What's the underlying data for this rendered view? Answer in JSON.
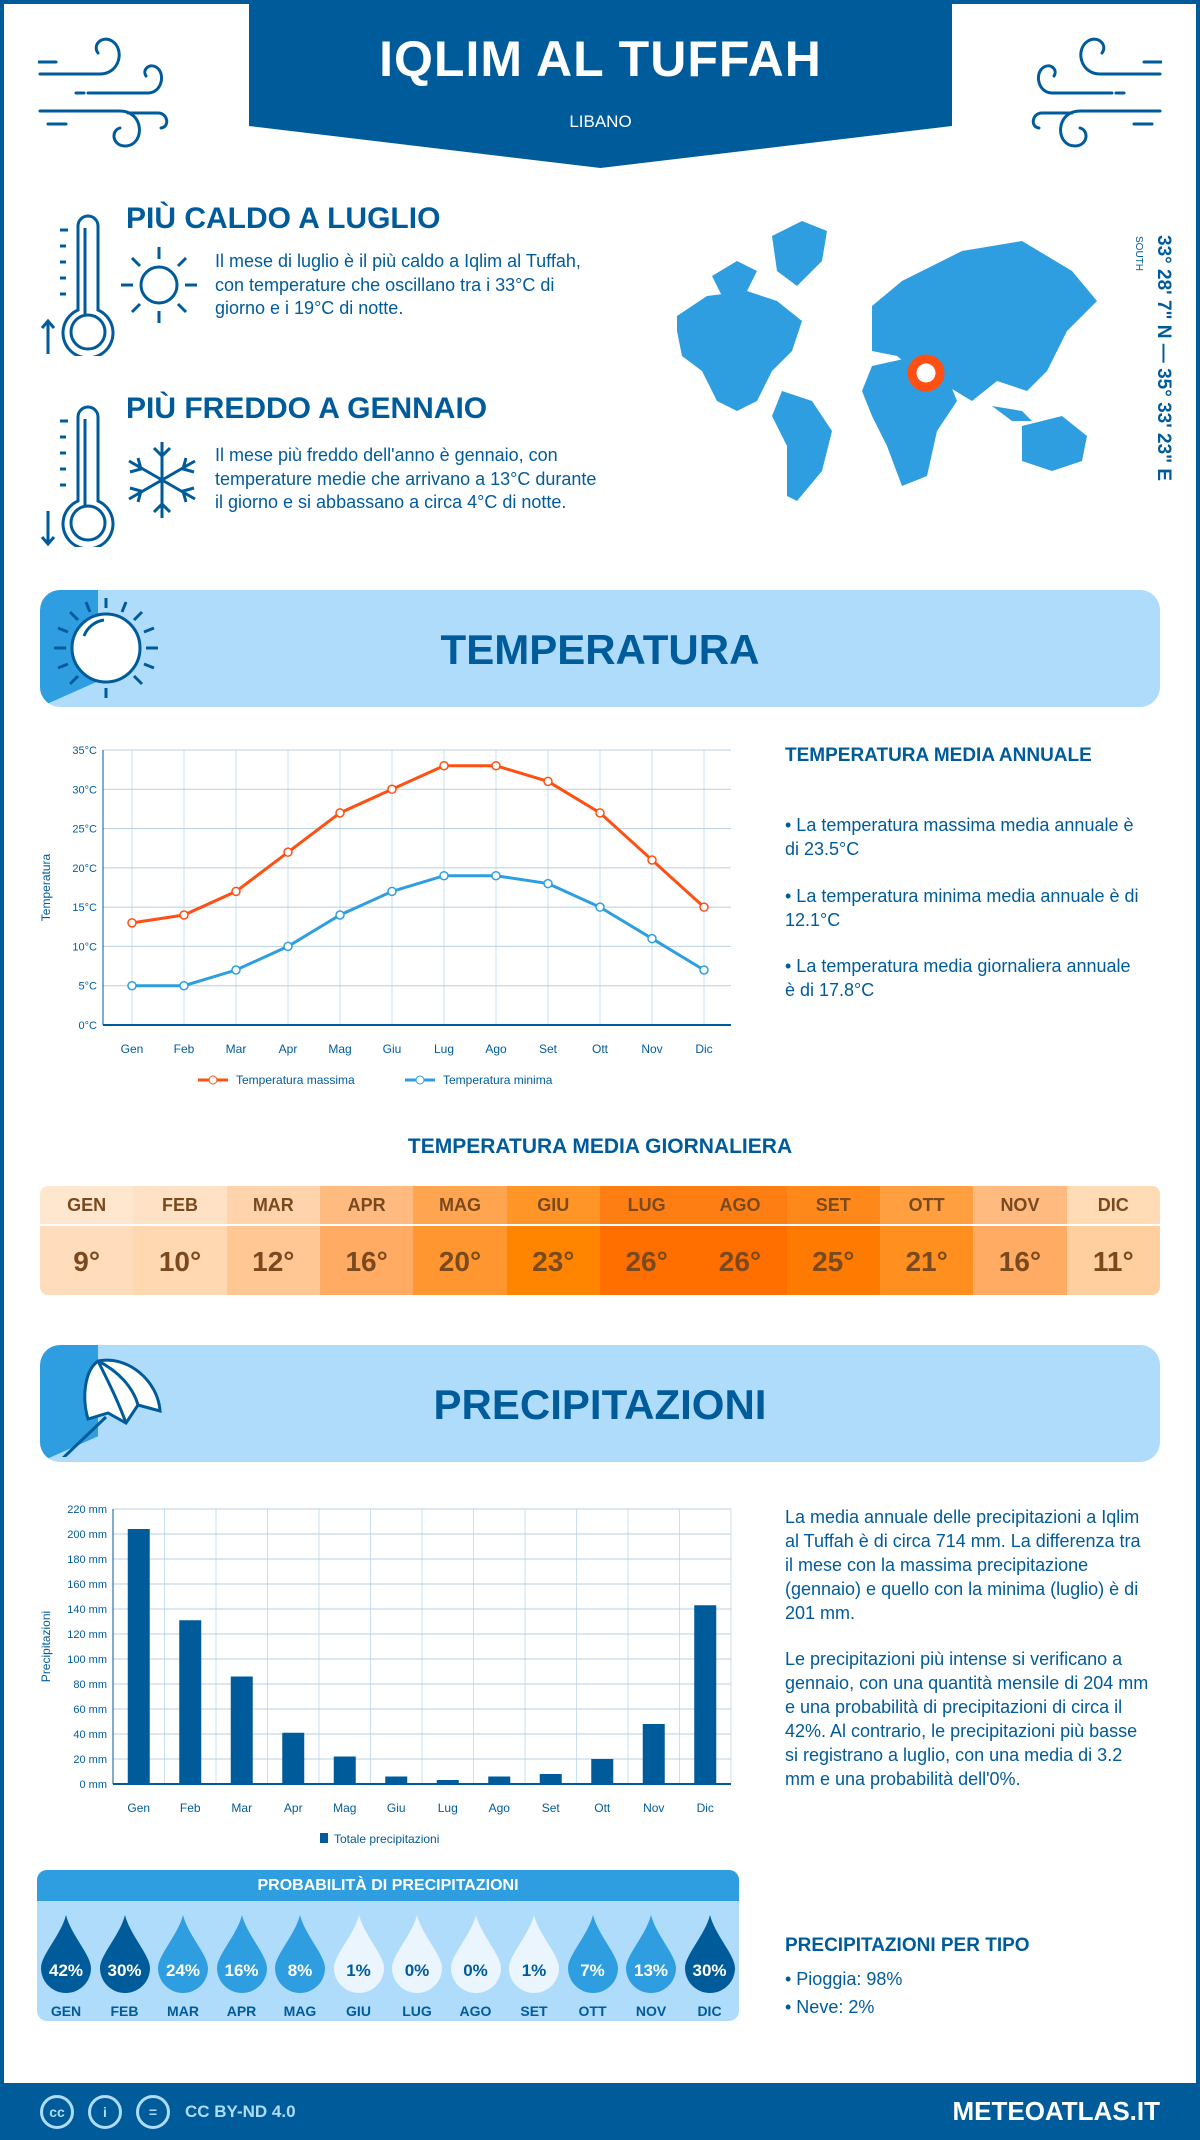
{
  "header": {
    "title": "IQLIM AL TUFFAH",
    "country": "LIBANO"
  },
  "hottest": {
    "title": "PIÙ CALDO A LUGLIO",
    "text": "Il mese di luglio è il più caldo a Iqlim al Tuffah, con temperature che oscillano tra i 33°C di giorno e i 19°C di notte."
  },
  "coldest": {
    "title": "PIÙ FREDDO A GENNAIO",
    "text": "Il mese più freddo dell'anno è gennaio, con temperature medie che arrivano a 13°C durante il giorno e si abbassano a circa 4°C di notte."
  },
  "coords": {
    "text": "33° 28' 7\" N — 35° 33' 23\" E",
    "small": "SOUTH"
  },
  "temperature": {
    "band_title": "TEMPERATURA",
    "annual_heading": "TEMPERATURA MEDIA ANNUALE",
    "bullets": [
      "• La temperatura massima media annuale è di 23.5°C",
      "• La temperatura minima media annuale è di 12.1°C",
      "• La temperatura media giornaliera annuale è di 17.8°C"
    ],
    "daily_heading": "TEMPERATURA MEDIA GIORNALIERA",
    "daily": [
      {
        "m": "GEN",
        "v": "9°",
        "c": "#ffdcbc",
        "h": "#ffe6cf"
      },
      {
        "m": "FEB",
        "v": "10°",
        "c": "#ffd7b1",
        "h": "#ffe2c5"
      },
      {
        "m": "MAR",
        "v": "12°",
        "c": "#ffc794",
        "h": "#ffd4ac"
      },
      {
        "m": "APR",
        "v": "16°",
        "c": "#ffab63",
        "h": "#ffba80"
      },
      {
        "m": "MAG",
        "v": "20°",
        "c": "#ff9630",
        "h": "#ffa54f"
      },
      {
        "m": "GIU",
        "v": "23°",
        "c": "#ff8500",
        "h": "#ff9526"
      },
      {
        "m": "LUG",
        "v": "26°",
        "c": "#ff6f00",
        "h": "#ff7e14"
      },
      {
        "m": "AGO",
        "v": "26°",
        "c": "#ff6f00",
        "h": "#ff7e14"
      },
      {
        "m": "SET",
        "v": "25°",
        "c": "#ff7a00",
        "h": "#ff881a"
      },
      {
        "m": "OTT",
        "v": "21°",
        "c": "#ff9020",
        "h": "#ff9f40"
      },
      {
        "m": "NOV",
        "v": "16°",
        "c": "#ffab63",
        "h": "#ffba80"
      },
      {
        "m": "DIC",
        "v": "11°",
        "c": "#ffcf9f",
        "h": "#ffdbb6"
      }
    ]
  },
  "chart_data": [
    {
      "type": "line",
      "title": "",
      "xlabel": "",
      "ylabel": "Temperatura",
      "categories": [
        "Gen",
        "Feb",
        "Mar",
        "Apr",
        "Mag",
        "Giu",
        "Lug",
        "Ago",
        "Set",
        "Ott",
        "Nov",
        "Dic"
      ],
      "yticks": [
        "0°C",
        "5°C",
        "10°C",
        "15°C",
        "20°C",
        "25°C",
        "30°C",
        "35°C"
      ],
      "ylim": [
        0,
        35
      ],
      "grid": true,
      "legend": "bottom",
      "series": [
        {
          "name": "Temperatura massima",
          "color": "#ff5014",
          "values": [
            13,
            14,
            17,
            22,
            27,
            30,
            33,
            33,
            31,
            27,
            21,
            15
          ]
        },
        {
          "name": "Temperatura minima",
          "color": "#2e9ee0",
          "values": [
            5,
            5,
            7,
            10,
            14,
            17,
            19,
            19,
            18,
            15,
            11,
            7
          ]
        }
      ]
    },
    {
      "type": "bar",
      "title": "",
      "xlabel": "",
      "ylabel": "Precipitazioni",
      "categories": [
        "Gen",
        "Feb",
        "Mar",
        "Apr",
        "Mag",
        "Giu",
        "Lug",
        "Ago",
        "Set",
        "Ott",
        "Nov",
        "Dic"
      ],
      "yticks": [
        "0 mm",
        "20 mm",
        "40 mm",
        "60 mm",
        "80 mm",
        "100 mm",
        "120 mm",
        "140 mm",
        "160 mm",
        "180 mm",
        "200 mm",
        "220 mm"
      ],
      "ylim": [
        0,
        220
      ],
      "grid": true,
      "legend": "bottom",
      "series": [
        {
          "name": "Totale precipitazioni",
          "color": "#005b9b",
          "values": [
            204,
            131,
            86,
            41,
            22,
            6,
            3.2,
            6,
            8,
            20,
            48,
            143
          ]
        }
      ]
    }
  ],
  "precipitation": {
    "band_title": "PRECIPITAZIONI",
    "para1": "La media annuale delle precipitazioni a Iqlim al Tuffah è di circa 714 mm. La differenza tra il mese con la massima precipitazione (gennaio) e quello con la minima (luglio) è di 201 mm.",
    "para2": "Le precipitazioni più intense si verificano a gennaio, con una quantità mensile di 204 mm e una probabilità di precipitazioni di circa il 42%. Al contrario, le precipitazioni più basse si registrano a luglio, con una media di 3.2 mm e una probabilità dell'0%.",
    "prob_title": "PROBABILITÀ DI PRECIPITAZIONI",
    "prob": [
      {
        "m": "GEN",
        "v": "42%",
        "p": 42
      },
      {
        "m": "FEB",
        "v": "30%",
        "p": 30
      },
      {
        "m": "MAR",
        "v": "24%",
        "p": 24
      },
      {
        "m": "APR",
        "v": "16%",
        "p": 16
      },
      {
        "m": "MAG",
        "v": "8%",
        "p": 8
      },
      {
        "m": "GIU",
        "v": "1%",
        "p": 1
      },
      {
        "m": "LUG",
        "v": "0%",
        "p": 0
      },
      {
        "m": "AGO",
        "v": "0%",
        "p": 0
      },
      {
        "m": "SET",
        "v": "1%",
        "p": 1
      },
      {
        "m": "OTT",
        "v": "7%",
        "p": 7
      },
      {
        "m": "NOV",
        "v": "13%",
        "p": 13
      },
      {
        "m": "DIC",
        "v": "30%",
        "p": 30
      }
    ],
    "type_heading": "PRECIPITAZIONI PER TIPO",
    "types": [
      "• Pioggia: 98%",
      "• Neve: 2%"
    ]
  },
  "footer": {
    "license": "CC BY-ND 4.0",
    "brand": "METEOATLAS.IT",
    "icons": [
      "cc-icon",
      "by-icon",
      "nd-icon"
    ]
  }
}
